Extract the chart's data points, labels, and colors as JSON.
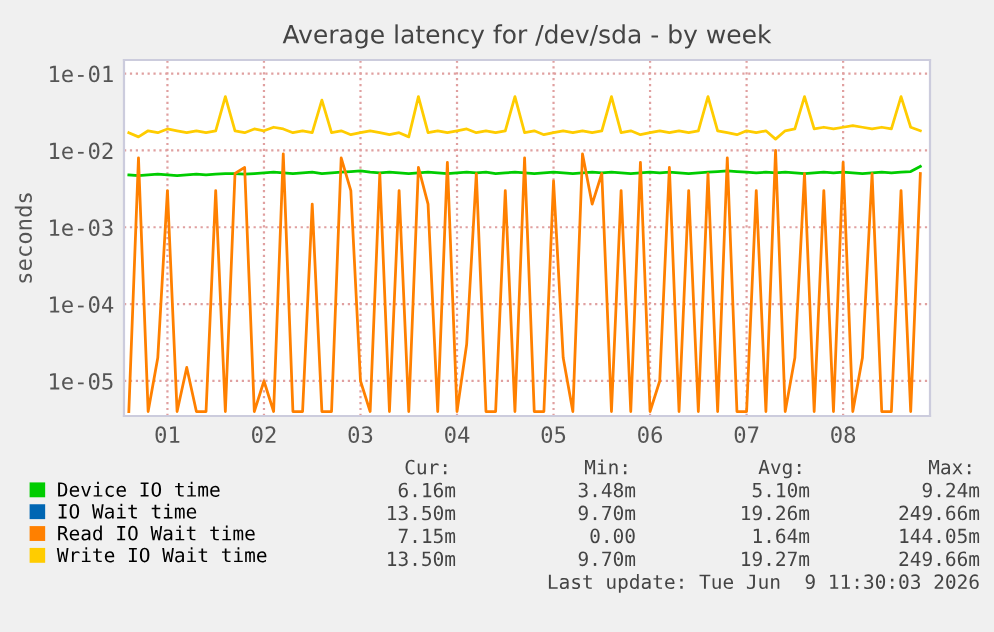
{
  "chart_data": {
    "type": "line",
    "title": "Average latency for /dev/sda - by week",
    "ylabel": "seconds",
    "x": [
      0.6,
      0.7,
      0.8,
      0.9,
      1.0,
      1.1,
      1.2,
      1.3,
      1.4,
      1.5,
      1.6,
      1.7,
      1.8,
      1.9,
      2.0,
      2.1,
      2.2,
      2.3,
      2.4,
      2.5,
      2.6,
      2.7,
      2.8,
      2.9,
      3.0,
      3.1,
      3.2,
      3.3,
      3.4,
      3.5,
      3.6,
      3.7,
      3.8,
      3.9,
      4.0,
      4.1,
      4.2,
      4.3,
      4.4,
      4.5,
      4.6,
      4.7,
      4.8,
      4.9,
      5.0,
      5.1,
      5.2,
      5.3,
      5.4,
      5.5,
      5.6,
      5.7,
      5.8,
      5.9,
      6.0,
      6.1,
      6.2,
      6.3,
      6.4,
      6.5,
      6.6,
      6.7,
      6.8,
      6.9,
      7.0,
      7.1,
      7.2,
      7.3,
      7.4,
      7.5,
      7.6,
      7.7,
      7.8,
      7.9,
      8.0,
      8.1,
      8.2,
      8.3,
      8.4,
      8.5,
      8.6,
      8.7,
      8.8
    ],
    "series": [
      {
        "name": "Device IO time",
        "color": "#00cc00",
        "values": [
          0.0048,
          0.0047,
          0.0048,
          0.0049,
          0.0048,
          0.0047,
          0.0048,
          0.0049,
          0.0048,
          0.0049,
          0.005,
          0.005,
          0.0049,
          0.005,
          0.0051,
          0.0052,
          0.0051,
          0.005,
          0.0051,
          0.0052,
          0.005,
          0.0051,
          0.0052,
          0.0053,
          0.0054,
          0.0052,
          0.0051,
          0.0052,
          0.0051,
          0.005,
          0.0051,
          0.0052,
          0.0051,
          0.005,
          0.0051,
          0.0052,
          0.0051,
          0.0052,
          0.005,
          0.0051,
          0.0052,
          0.0051,
          0.005,
          0.0051,
          0.0052,
          0.0051,
          0.005,
          0.0051,
          0.0052,
          0.0051,
          0.0052,
          0.0051,
          0.005,
          0.0051,
          0.0052,
          0.0051,
          0.0052,
          0.0051,
          0.005,
          0.0051,
          0.0052,
          0.0053,
          0.0054,
          0.0053,
          0.0052,
          0.0051,
          0.0052,
          0.0051,
          0.0052,
          0.0051,
          0.005,
          0.0051,
          0.0052,
          0.0051,
          0.0052,
          0.0051,
          0.005,
          0.0051,
          0.0052,
          0.0051,
          0.0052,
          0.0053,
          0.0062
        ]
      },
      {
        "name": "IO Wait time",
        "color": "#0066b3",
        "values": [
          null,
          null,
          null,
          null,
          null,
          null,
          null,
          null,
          null,
          null,
          null,
          null,
          null,
          null,
          null,
          null,
          null,
          null,
          null,
          null,
          null,
          null,
          null,
          null,
          null,
          null,
          null,
          null,
          null,
          null,
          null,
          null,
          null,
          null,
          null,
          null,
          null,
          null,
          null,
          null,
          null,
          null,
          null,
          null,
          null,
          null,
          null,
          null,
          null,
          null,
          null,
          null,
          null,
          null,
          null,
          null,
          null,
          null,
          null,
          null,
          null,
          null,
          null,
          null,
          null,
          null,
          null,
          null,
          null,
          null,
          null,
          null,
          null,
          null,
          null,
          null,
          null,
          null,
          null,
          null,
          null,
          null,
          null
        ]
      },
      {
        "name": "Read IO Wait time",
        "color": "#ff8000",
        "values": [
          4e-06,
          0.008,
          4e-06,
          2e-05,
          0.003,
          4e-06,
          1.5e-05,
          4e-06,
          4e-06,
          0.003,
          4e-06,
          0.005,
          0.006,
          4e-06,
          1e-05,
          4e-06,
          0.009,
          4e-06,
          4e-06,
          0.002,
          4e-06,
          4e-06,
          0.008,
          0.003,
          1e-05,
          4e-06,
          0.005,
          4e-06,
          0.003,
          4e-06,
          0.006,
          0.002,
          4e-06,
          0.007,
          4e-06,
          3e-05,
          0.005,
          4e-06,
          4e-06,
          0.003,
          4e-06,
          0.008,
          4e-06,
          4e-06,
          0.004,
          2e-05,
          4e-06,
          0.009,
          0.002,
          0.005,
          4e-06,
          0.003,
          4e-06,
          0.007,
          4e-06,
          1e-05,
          0.006,
          4e-06,
          0.003,
          4e-06,
          0.005,
          4e-06,
          0.008,
          4e-06,
          4e-06,
          0.003,
          4e-06,
          0.01,
          4e-06,
          2e-05,
          0.005,
          4e-06,
          0.003,
          4e-06,
          0.007,
          4e-06,
          2e-05,
          0.005,
          4e-06,
          4e-06,
          0.003,
          4e-06,
          0.005
        ]
      },
      {
        "name": "Write IO Wait time",
        "color": "#ffcc00",
        "values": [
          0.017,
          0.015,
          0.018,
          0.017,
          0.019,
          0.018,
          0.017,
          0.018,
          0.017,
          0.018,
          0.05,
          0.018,
          0.017,
          0.019,
          0.018,
          0.02,
          0.019,
          0.017,
          0.018,
          0.017,
          0.045,
          0.017,
          0.018,
          0.016,
          0.017,
          0.018,
          0.017,
          0.016,
          0.017,
          0.015,
          0.05,
          0.017,
          0.018,
          0.017,
          0.018,
          0.019,
          0.017,
          0.018,
          0.017,
          0.018,
          0.05,
          0.017,
          0.018,
          0.016,
          0.017,
          0.018,
          0.017,
          0.018,
          0.017,
          0.018,
          0.05,
          0.017,
          0.018,
          0.016,
          0.017,
          0.018,
          0.017,
          0.018,
          0.017,
          0.018,
          0.05,
          0.018,
          0.017,
          0.016,
          0.018,
          0.017,
          0.018,
          0.014,
          0.018,
          0.019,
          0.05,
          0.019,
          0.02,
          0.019,
          0.02,
          0.021,
          0.02,
          0.019,
          0.02,
          0.019,
          0.05,
          0.02,
          0.018
        ]
      }
    ],
    "log": "y",
    "ylim": [
      3.5e-06,
      0.15
    ],
    "yticks": [
      {
        "value": 1e-05,
        "label": "1e-05"
      },
      {
        "value": 0.0001,
        "label": "1e-04"
      },
      {
        "value": 0.001,
        "label": "1e-03"
      },
      {
        "value": 0.01,
        "label": "1e-02"
      },
      {
        "value": 0.1,
        "label": "1e-01"
      }
    ],
    "xlim": [
      0.55,
      8.9
    ],
    "xticks": [
      {
        "value": 1,
        "label": "01"
      },
      {
        "value": 2,
        "label": "02"
      },
      {
        "value": 3,
        "label": "03"
      },
      {
        "value": 4,
        "label": "04"
      },
      {
        "value": 5,
        "label": "05"
      },
      {
        "value": 6,
        "label": "06"
      },
      {
        "value": 7,
        "label": "07"
      },
      {
        "value": 8,
        "label": "08"
      }
    ],
    "grid": true,
    "legend": "bottom",
    "line_style": "solid",
    "annotations": [
      "Cur:",
      "Min:",
      "Avg:",
      "Max:",
      "6.16m",
      "3.48m",
      "5.10m",
      "9.24m",
      "13.50m",
      "9.70m",
      "19.26m",
      "249.66m",
      "7.15m",
      "0.00",
      "1.64m",
      "144.05m",
      "13.50m",
      "9.70m",
      "19.27m",
      "249.66m",
      "Last update: Tue Jun  9 11:30:03 2026"
    ]
  }
}
